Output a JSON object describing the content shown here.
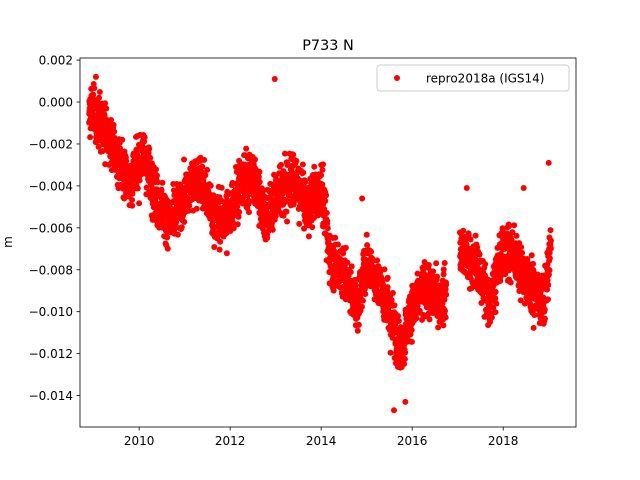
{
  "chart_data": {
    "type": "scatter",
    "title": "P733 N",
    "xlabel": "",
    "ylabel": "m",
    "xlim": [
      2008.7,
      2019.6
    ],
    "ylim": [
      -0.0155,
      0.0021
    ],
    "x_ticks": [
      2010,
      2012,
      2014,
      2016,
      2018
    ],
    "y_ticks": [
      0.002,
      0.0,
      -0.002,
      -0.004,
      -0.006,
      -0.008,
      -0.01,
      -0.012,
      -0.014
    ],
    "y_tick_labels": [
      "0.002",
      "0.000",
      "−0.002",
      "−0.004",
      "−0.006",
      "−0.008",
      "−0.010",
      "−0.012",
      "−0.014"
    ],
    "grid": false,
    "legend_position": "top-right",
    "series": [
      {
        "name": "repro2018a (IGS14)",
        "color": "#ff0000",
        "marker": "circle",
        "trend": [
          [
            2008.9,
            -0.0003
          ],
          [
            2009.2,
            -0.0012
          ],
          [
            2009.5,
            -0.0025
          ],
          [
            2009.8,
            -0.0038
          ],
          [
            2010.1,
            -0.0025
          ],
          [
            2010.4,
            -0.0048
          ],
          [
            2010.7,
            -0.0058
          ],
          [
            2011.0,
            -0.0045
          ],
          [
            2011.3,
            -0.0035
          ],
          [
            2011.6,
            -0.0052
          ],
          [
            2011.9,
            -0.0058
          ],
          [
            2012.2,
            -0.004
          ],
          [
            2012.5,
            -0.0035
          ],
          [
            2012.8,
            -0.0055
          ],
          [
            2013.1,
            -0.0042
          ],
          [
            2013.4,
            -0.0038
          ],
          [
            2013.7,
            -0.005
          ],
          [
            2014.0,
            -0.004
          ],
          [
            2014.2,
            -0.0075
          ],
          [
            2014.5,
            -0.0082
          ],
          [
            2014.8,
            -0.0098
          ],
          [
            2015.0,
            -0.0075
          ],
          [
            2015.3,
            -0.0088
          ],
          [
            2015.5,
            -0.01
          ],
          [
            2015.75,
            -0.0118
          ],
          [
            2016.0,
            -0.0098
          ],
          [
            2016.3,
            -0.0088
          ],
          [
            2016.6,
            -0.0095
          ],
          [
            2016.75,
            -0.009
          ],
          [
            2017.05,
            -0.007
          ],
          [
            2017.4,
            -0.0078
          ],
          [
            2017.7,
            -0.0095
          ],
          [
            2018.0,
            -0.007
          ],
          [
            2018.3,
            -0.0075
          ],
          [
            2018.6,
            -0.0088
          ],
          [
            2018.9,
            -0.0095
          ],
          [
            2019.05,
            -0.0068
          ]
        ],
        "noise_m": 0.0011,
        "gaps": [
          [
            2016.75,
            2017.05
          ]
        ],
        "extra_points": [
          [
            2012.98,
            0.0011
          ],
          [
            2015.6,
            -0.0147
          ],
          [
            2015.85,
            -0.0143
          ],
          [
            2014.9,
            -0.0046
          ],
          [
            2019.0,
            -0.0029
          ],
          [
            2017.2,
            -0.0041
          ],
          [
            2018.45,
            -0.0041
          ],
          [
            2009.05,
            0.0012
          ]
        ],
        "n_points": 3300
      }
    ]
  }
}
